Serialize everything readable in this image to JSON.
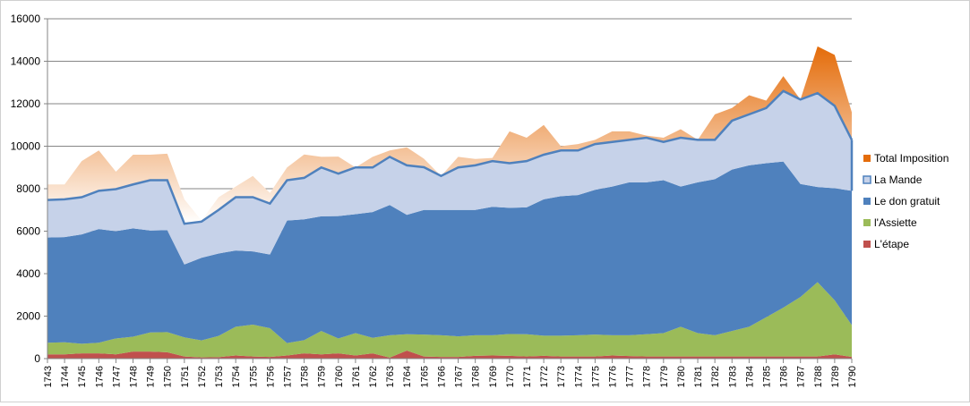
{
  "chart_data": {
    "type": "area",
    "title": "",
    "xlabel": "",
    "ylabel": "",
    "ylim": [
      0,
      16000
    ],
    "yticks": [
      0,
      2000,
      4000,
      6000,
      8000,
      10000,
      12000,
      14000,
      16000
    ],
    "grid": true,
    "legend_position": "right",
    "stacked": true,
    "categories": [
      "1743",
      "1744",
      "1745",
      "1746",
      "1747",
      "1748",
      "1749",
      "1750",
      "1751",
      "1752",
      "1753",
      "1754",
      "1755",
      "1756",
      "1757",
      "1758",
      "1759",
      "1760",
      "1761",
      "1762",
      "1763",
      "1764",
      "1765",
      "1766",
      "1767",
      "1768",
      "1769",
      "1770",
      "1771",
      "1772",
      "1773",
      "1774",
      "1775",
      "1776",
      "1777",
      "1778",
      "1779",
      "1780",
      "1781",
      "1782",
      "1783",
      "1784",
      "1785",
      "1786",
      "1787",
      "1788",
      "1789",
      "1790"
    ],
    "series": [
      {
        "name": "L'étape",
        "color": "#c0504d",
        "values": [
          200,
          200,
          250,
          250,
          200,
          330,
          330,
          300,
          100,
          60,
          70,
          150,
          100,
          80,
          150,
          250,
          200,
          250,
          150,
          250,
          50,
          380,
          100,
          80,
          80,
          130,
          150,
          130,
          100,
          130,
          100,
          100,
          100,
          150,
          120,
          100,
          100,
          100,
          100,
          100,
          100,
          100,
          100,
          100,
          100,
          100,
          200,
          80
        ]
      },
      {
        "name": "l'Assiette",
        "color": "#9bbb59",
        "values": [
          550,
          570,
          450,
          500,
          750,
          700,
          900,
          950,
          900,
          800,
          1000,
          1350,
          1500,
          1350,
          580,
          620,
          1100,
          700,
          1050,
          730,
          1050,
          770,
          1030,
          1020,
          970,
          970,
          950,
          1030,
          1050,
          950,
          980,
          1000,
          1030,
          950,
          980,
          1050,
          1100,
          1400,
          1100,
          1000,
          1200,
          1400,
          1850,
          2300,
          2800,
          3500,
          2550,
          1500
        ]
      },
      {
        "name": "Le don gratuit",
        "color": "#4f81bd",
        "values": [
          4950,
          4950,
          5150,
          5350,
          5050,
          5100,
          4800,
          4800,
          3430,
          3890,
          3880,
          3590,
          3450,
          3470,
          5770,
          5690,
          5400,
          5760,
          5600,
          5920,
          6130,
          5620,
          5870,
          5900,
          5950,
          5900,
          6050,
          5940,
          5970,
          6420,
          6570,
          6600,
          6820,
          7000,
          7200,
          7150,
          7200,
          6600,
          7100,
          7350,
          7600,
          7600,
          7250,
          6880,
          5320,
          4480,
          5270,
          6320
        ]
      },
      {
        "name": "La Mande",
        "color": "#c6d2e9",
        "values": [
          1770,
          1780,
          1750,
          1800,
          1980,
          2070,
          2370,
          2350,
          1920,
          1700,
          2050,
          2510,
          2550,
          2400,
          1900,
          1950,
          2300,
          2000,
          2200,
          2100,
          2270,
          2330,
          2010,
          1600,
          2000,
          2100,
          2150,
          2100,
          2180,
          2100,
          2150,
          2100,
          2150,
          2100,
          2000,
          2100,
          1800,
          2300,
          2000,
          1850,
          2300,
          2400,
          2600,
          3320,
          3980,
          4420,
          3880,
          2400
        ]
      },
      {
        "name": "Total Imposition",
        "color": "#e46c0a",
        "values": [
          730,
          700,
          1700,
          1900,
          820,
          1400,
          1200,
          1250,
          1150,
          50,
          600,
          500,
          1000,
          500,
          600,
          1100,
          500,
          800,
          0,
          500,
          300,
          850,
          400,
          0,
          500,
          300,
          150,
          1500,
          1100,
          1400,
          200,
          300,
          200,
          500,
          400,
          100,
          200,
          400,
          0,
          1200,
          600,
          900,
          350,
          700,
          0,
          2200,
          2400,
          1300
        ]
      }
    ]
  }
}
